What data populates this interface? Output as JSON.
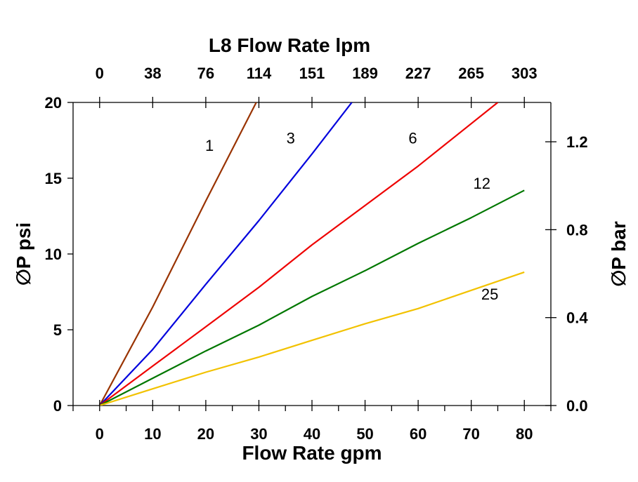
{
  "chart_data": {
    "type": "line",
    "title": "L8  Flow Rate lpm",
    "xlabel": "Flow Rate gpm",
    "ylabel": "∅P psi",
    "y2label": "∅P bar",
    "xlim": [
      -5,
      85
    ],
    "ylim": [
      0,
      20
    ],
    "y2lim": [
      0,
      1.379
    ],
    "x_ticks": [
      0,
      10,
      20,
      30,
      40,
      50,
      60,
      70,
      80
    ],
    "x_tick_labels": [
      "0",
      "10",
      "20",
      "30",
      "40",
      "50",
      "60",
      "70",
      "80"
    ],
    "top_ticks": [
      0,
      10,
      20,
      30,
      40,
      50,
      60,
      70,
      80
    ],
    "top_tick_labels": [
      "0",
      "38",
      "76",
      "114",
      "151",
      "189",
      "227",
      "265",
      "303"
    ],
    "y_ticks": [
      0,
      5,
      10,
      15,
      20
    ],
    "y_tick_labels": [
      "0",
      "5",
      "10",
      "15",
      "20"
    ],
    "y2_ticks": [
      0.0,
      0.4,
      0.8,
      1.2
    ],
    "y2_tick_labels": [
      "0.0",
      "0.4",
      "0.8",
      "1.2"
    ],
    "grid": false,
    "series": [
      {
        "name": "1",
        "color": "#993300",
        "x": [
          0,
          10,
          20,
          29.5
        ],
        "y": [
          0,
          6.5,
          13.5,
          20
        ],
        "label_at": [
          20.7,
          16.8
        ]
      },
      {
        "name": "3",
        "color": "#0000dd",
        "x": [
          0,
          10,
          20,
          30,
          40,
          47.5
        ],
        "y": [
          0,
          3.7,
          8.0,
          12.2,
          16.6,
          20
        ],
        "label_at": [
          36.0,
          17.3
        ]
      },
      {
        "name": "6",
        "color": "#ee0000",
        "x": [
          0,
          10,
          20,
          30,
          40,
          50,
          60,
          75
        ],
        "y": [
          0,
          2.6,
          5.2,
          7.8,
          10.6,
          13.2,
          15.8,
          20
        ],
        "label_at": [
          59.0,
          17.3
        ]
      },
      {
        "name": "12",
        "color": "#007700",
        "x": [
          0,
          10,
          20,
          30,
          40,
          50,
          60,
          70,
          80
        ],
        "y": [
          0,
          1.8,
          3.6,
          5.3,
          7.2,
          8.9,
          10.7,
          12.4,
          14.2
        ],
        "label_at": [
          72.0,
          14.3
        ]
      },
      {
        "name": "25",
        "color": "#f2c200",
        "x": [
          0,
          10,
          20,
          30,
          40,
          50,
          60,
          70,
          80
        ],
        "y": [
          0,
          1.1,
          2.2,
          3.2,
          4.3,
          5.4,
          6.4,
          7.6,
          8.8
        ],
        "label_at": [
          73.5,
          7.0
        ]
      }
    ]
  }
}
